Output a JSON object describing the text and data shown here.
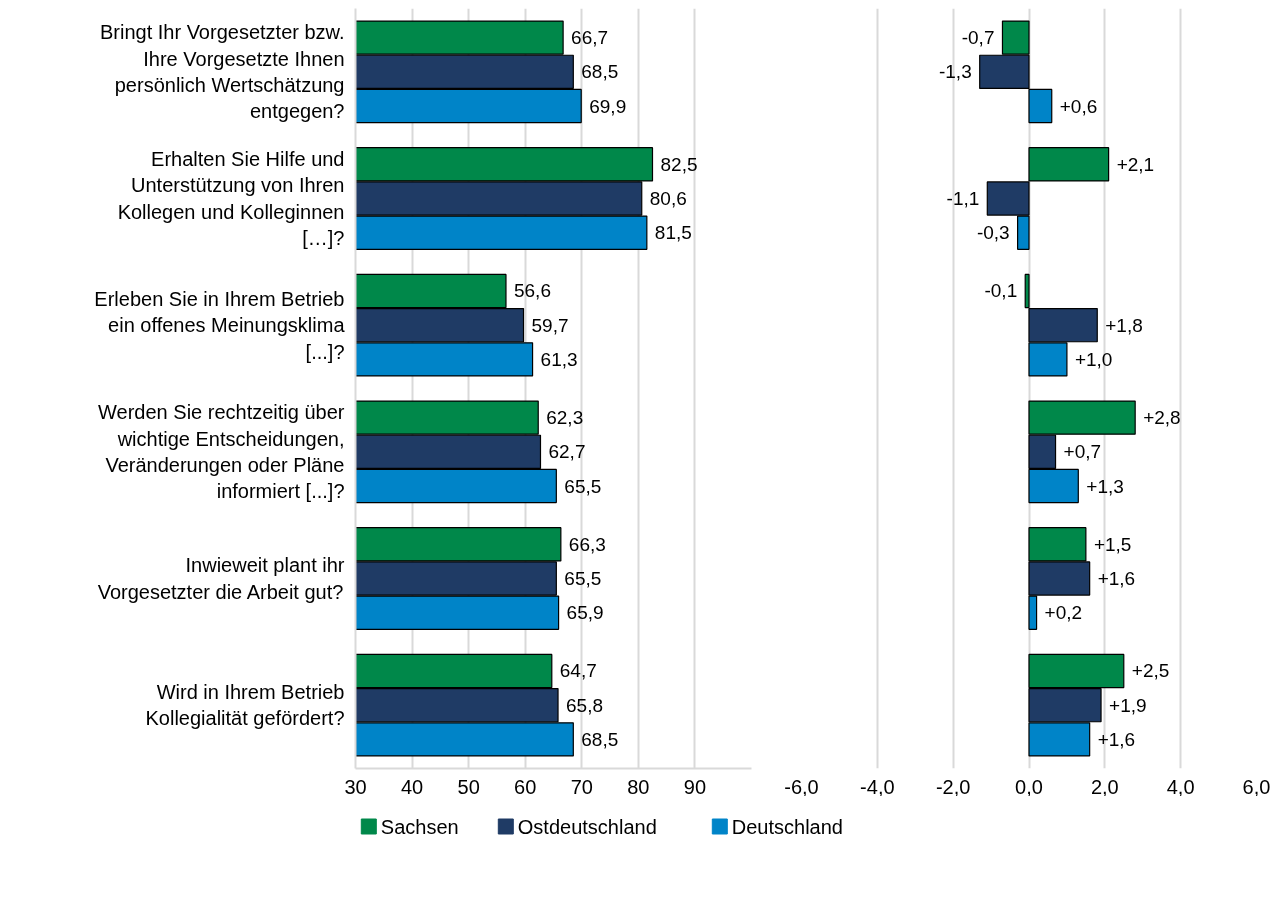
{
  "chart_data": [
    {
      "type": "bar",
      "orientation": "horizontal",
      "categories": [
        "Bringt Ihr Vorgesetzter bzw. Ihre Vorgesetzte Ihnen persönlich Wertschätzung entgegen?",
        "Erhalten Sie Hilfe und Unterstützung von Ihren Kollegen und Kolleginnen […]?",
        "Erleben Sie in Ihrem Betrieb ein offenes Meinungsklima [...]?",
        "Werden Sie rechtzeitig über wichtige Entscheidungen, Veränderungen oder Pläne informiert [...]?",
        "Inwieweit plant ihr Vorgesetzter die Arbeit gut?",
        "Wird in Ihrem Betrieb Kollegialität gefördert?"
      ],
      "series": [
        {
          "name": "Sachsen",
          "color": "#00884a",
          "values": [
            66.7,
            82.5,
            56.6,
            62.3,
            66.3,
            64.7
          ],
          "value_labels": [
            "66,7",
            "82,5",
            "56,6",
            "62,3",
            "66,3",
            "64,7"
          ]
        },
        {
          "name": "Ostdeutschland",
          "color": "#1f3b65",
          "values": [
            68.5,
            80.6,
            59.7,
            62.7,
            65.5,
            65.8
          ],
          "value_labels": [
            "68,5",
            "80,6",
            "59,7",
            "62,7",
            "65,5",
            "65,8"
          ]
        },
        {
          "name": "Deutschland",
          "color": "#0084c8",
          "values": [
            69.9,
            81.5,
            61.3,
            65.5,
            65.9,
            68.5
          ],
          "value_labels": [
            "69,9",
            "81,5",
            "61,3",
            "65,5",
            "65,9",
            "68,5"
          ]
        }
      ],
      "xlim": [
        30,
        100
      ],
      "xticks": [
        30,
        40,
        50,
        60,
        70,
        80,
        90
      ],
      "grid": "x",
      "legend": "bottom"
    },
    {
      "type": "bar",
      "orientation": "horizontal",
      "categories": [
        null,
        null,
        null,
        null,
        null,
        null
      ],
      "series": [
        {
          "color": "#00884a",
          "values": [
            -0.7,
            2.1,
            -0.1,
            2.8,
            1.5,
            2.5
          ],
          "value_labels": [
            "-0,7",
            "+2,1",
            "-0,1",
            "+2,8",
            "+1,5",
            "+2,5"
          ]
        },
        {
          "color": "#1f3b65",
          "values": [
            -1.3,
            -1.1,
            1.8,
            0.7,
            1.6,
            1.9
          ],
          "value_labels": [
            "-1,3",
            "-1,1",
            "+1,8",
            "+0,7",
            "+1,6",
            "+1,9"
          ]
        },
        {
          "color": "#0084c8",
          "values": [
            0.6,
            -0.3,
            1.0,
            1.3,
            0.2,
            1.6
          ],
          "value_labels": [
            "+0,6",
            "-0,3",
            "+1,0",
            "+1,3",
            "+0,2",
            "+1,6"
          ]
        }
      ],
      "xlim": [
        -6,
        6
      ],
      "xticks": [
        {
          "value": -6,
          "label": "-6,0"
        },
        {
          "value": -4,
          "label": "-4,0"
        },
        {
          "value": -2,
          "label": "-2,0"
        },
        {
          "value": 0,
          "label": "0,0"
        },
        {
          "value": 2,
          "label": "2,0"
        },
        {
          "value": 4,
          "label": "4,0"
        },
        {
          "value": 6,
          "label": "6,0"
        }
      ],
      "grid": "x",
      "tick_labels": "x"
    }
  ]
}
